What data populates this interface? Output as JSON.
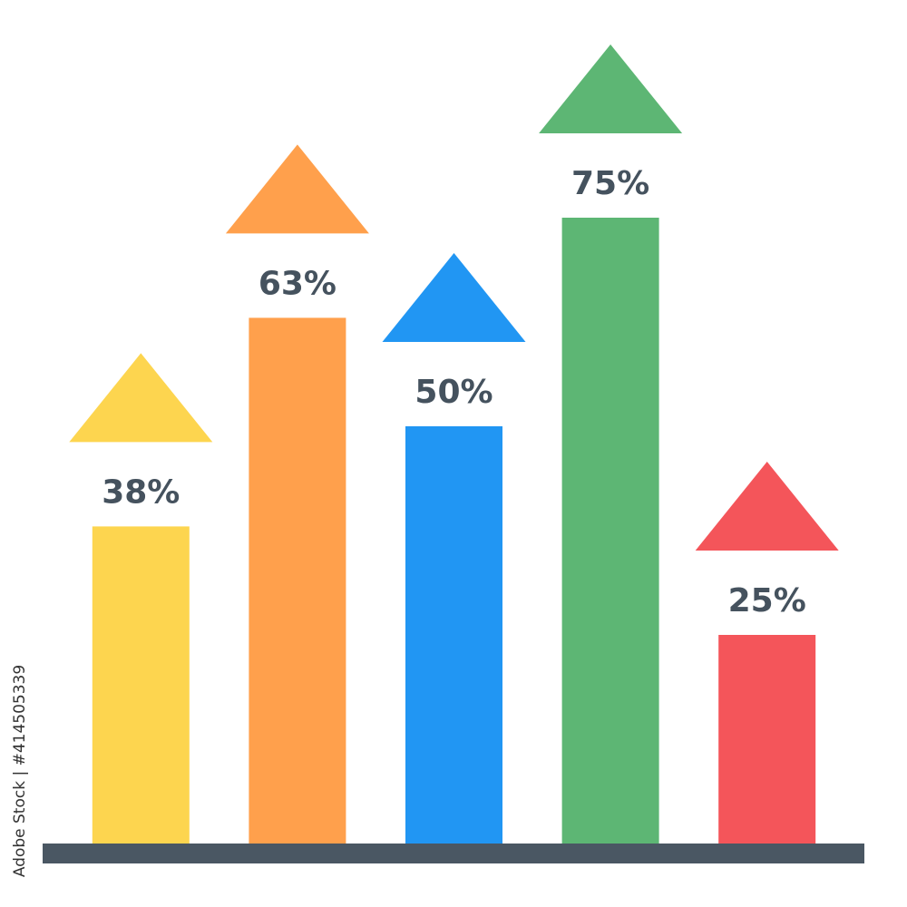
{
  "chart_data": {
    "type": "bar",
    "categories": [
      null,
      null,
      null,
      null,
      null
    ],
    "values": [
      38,
      63,
      50,
      75,
      25
    ],
    "value_labels": [
      "38%",
      "63%",
      "50%",
      "75%",
      "25%"
    ],
    "colors": [
      "#fdd54f",
      "#ffa04c",
      "#2196f3",
      "#5db674",
      "#f4555a"
    ],
    "baseline_color": "#4a5763",
    "watermark": "Adobe Stock | #414505339"
  }
}
